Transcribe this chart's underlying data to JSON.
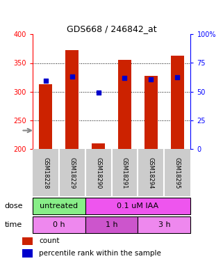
{
  "title": "GDS668 / 246842_at",
  "samples": [
    "GSM18228",
    "GSM18229",
    "GSM18290",
    "GSM18291",
    "GSM18294",
    "GSM18295"
  ],
  "count_values": [
    313,
    372,
    210,
    356,
    328,
    363
  ],
  "count_base": 200,
  "percentile_values": [
    319,
    326,
    298,
    324,
    322,
    325
  ],
  "ylim_left": [
    200,
    400
  ],
  "ylim_right": [
    0,
    100
  ],
  "yticks_left": [
    200,
    250,
    300,
    350,
    400
  ],
  "yticks_right": [
    0,
    25,
    50,
    75,
    100
  ],
  "ytick_right_labels": [
    "0",
    "25",
    "50",
    "75",
    "100%"
  ],
  "bar_color": "#cc2200",
  "percentile_color": "#0000cc",
  "dose_labels": [
    {
      "text": "untreated",
      "start": 0,
      "end": 2,
      "color": "#88ee88"
    },
    {
      "text": "0.1 uM IAA",
      "start": 2,
      "end": 6,
      "color": "#ee55ee"
    }
  ],
  "time_labels": [
    {
      "text": "0 h",
      "start": 0,
      "end": 2,
      "color": "#ee88ee"
    },
    {
      "text": "1 h",
      "start": 2,
      "end": 4,
      "color": "#cc55cc"
    },
    {
      "text": "3 h",
      "start": 4,
      "end": 6,
      "color": "#ee88ee"
    }
  ],
  "dose_row_label": "dose",
  "time_row_label": "time",
  "legend_count": "count",
  "legend_percentile": "percentile rank within the sample",
  "background_color": "#ffffff",
  "sample_bg_color": "#cccccc",
  "grid_yticks": [
    250,
    300,
    350
  ]
}
